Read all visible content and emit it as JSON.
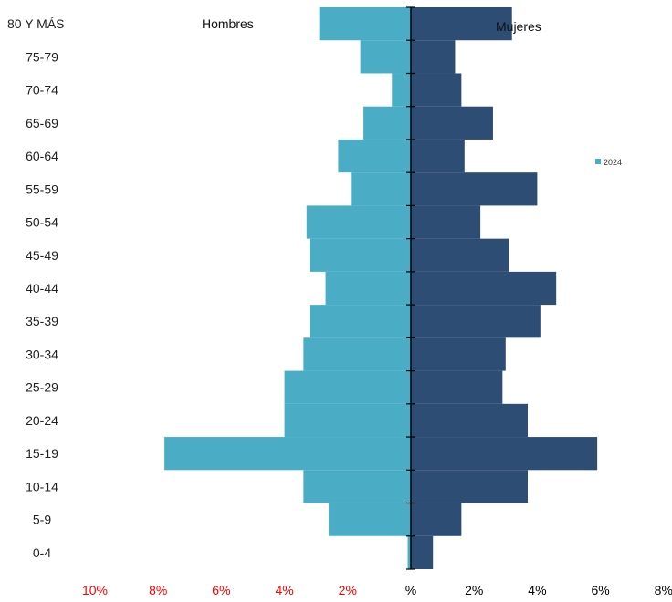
{
  "chart_data": {
    "type": "bar",
    "orientation": "horizontal",
    "layout": "population-pyramid",
    "categories": [
      "0-4",
      "5-9",
      "10-14",
      "15-19",
      "20-24",
      "25-29",
      "30-34",
      "35-39",
      "40-44",
      "45-49",
      "50-54",
      "55-59",
      "60-64",
      "65-69",
      "70-74",
      "75-79",
      "80 Y MÁS"
    ],
    "series": [
      {
        "name": "Hombres",
        "side": "left",
        "color": "#4bacc6",
        "values": [
          0.1,
          2.6,
          3.4,
          7.8,
          4.0,
          4.0,
          3.4,
          3.2,
          2.7,
          3.2,
          3.3,
          1.9,
          2.3,
          1.5,
          0.6,
          1.6,
          2.9
        ]
      },
      {
        "name": "Mujeres",
        "side": "right",
        "color": "#2e4d74",
        "values": [
          0.7,
          1.6,
          3.7,
          5.9,
          3.7,
          2.9,
          3.0,
          4.1,
          4.6,
          3.1,
          2.2,
          4.0,
          1.7,
          2.6,
          1.6,
          1.4,
          3.2
        ]
      }
    ],
    "group_labels": {
      "left": "Hombres",
      "right": "Mujeres"
    },
    "legend": {
      "label": "2024",
      "color": "#4bacc6",
      "position": "right"
    },
    "x_ticks": [
      {
        "label": "10%",
        "value": -10,
        "color": "#ff0000"
      },
      {
        "label": "8%",
        "value": -8,
        "color": "#ff0000"
      },
      {
        "label": "6%",
        "value": -6,
        "color": "#ff0000"
      },
      {
        "label": "4%",
        "value": -4,
        "color": "#ff0000"
      },
      {
        "label": "2%",
        "value": -2,
        "color": "#ff0000"
      },
      {
        "label": "%",
        "value": 0,
        "color": "#000000"
      },
      {
        "label": "2%",
        "value": 2,
        "color": "#000000"
      },
      {
        "label": "4%",
        "value": 4,
        "color": "#000000"
      },
      {
        "label": "6%",
        "value": 6,
        "color": "#000000"
      },
      {
        "label": "8%",
        "value": 8,
        "color": "#000000"
      }
    ],
    "xlim": [
      -10,
      8
    ],
    "grid": false
  }
}
